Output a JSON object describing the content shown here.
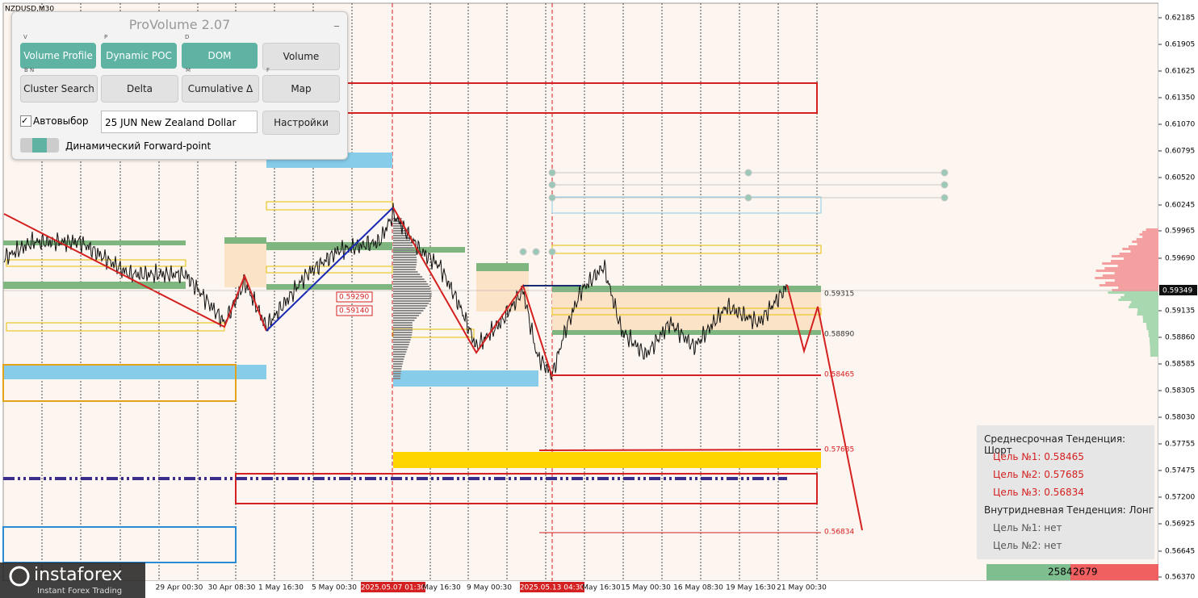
{
  "symbol": "NZDUSD,M30",
  "panel": {
    "title": "ProVolume 2.07",
    "buttons": [
      {
        "key": "V",
        "label": "Volume Profile"
      },
      {
        "key": "P",
        "label": "Dynamic POC"
      },
      {
        "key": "D",
        "label": "DOM"
      },
      {
        "key": "",
        "label": "Volume"
      },
      {
        "key": "B N",
        "label": "Cluster Search"
      },
      {
        "key": "",
        "label": "Delta"
      },
      {
        "key": "M",
        "label": "Cumulative Δ"
      },
      {
        "key": "F",
        "label": "Map"
      }
    ],
    "autoselect": "Автовыбор",
    "instrument": "25 JUN New Zealand Dollar",
    "settings": "Настройки",
    "forward_point": "Динамический Forward-point"
  },
  "price_axis": [
    "0.62185",
    "0.61905",
    "0.61625",
    "0.61350",
    "0.61070",
    "0.60795",
    "0.60520",
    "0.60245",
    "0.59965",
    "0.59690",
    "0.59135",
    "0.58860",
    "0.58585",
    "0.58305",
    "0.58030",
    "0.57755",
    "0.57475",
    "0.57200",
    "0.56925",
    "0.56645",
    "0.56370"
  ],
  "current_price": "0.59349",
  "time_axis": [
    "29 Apr 00:30",
    "30 Apr 08:30",
    "1 May 16:30",
    "5 May 00:30",
    "2025.05.07 01:30",
    "May 16:30",
    "9 May 00:30",
    "2025.05.13 04:30",
    "May 16:30",
    "15 May 00:30",
    "16 May 08:30",
    "19 May 16:30",
    "21 May 00:30"
  ],
  "levels": [
    "0.59290",
    "0.59140",
    "0.59315",
    "0.58890",
    "0.58465",
    "0.57685",
    "0.56834"
  ],
  "info": {
    "medium_trend": "Среднесрочная Тенденция: Шорт",
    "medium_targets": [
      "Цель №1: 0.58465",
      "Цель №2: 0.57685",
      "Цель №3: 0.56834"
    ],
    "intraday_trend": "Внутридневная Тенденция: Лонг",
    "intraday_targets": [
      "Цель №1: нет",
      "Цель №2: нет"
    ]
  },
  "counters": {
    "buy": "2584",
    "sell": "2679"
  },
  "logo": {
    "name": "instaforex",
    "tagline": "Instant Forex Trading"
  }
}
